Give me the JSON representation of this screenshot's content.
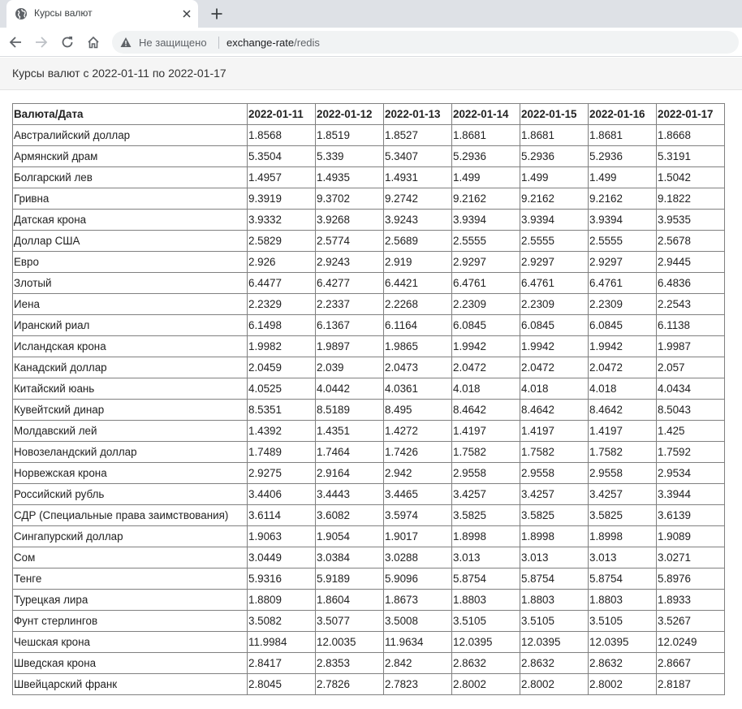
{
  "browser": {
    "tab_title": "Курсы валют",
    "security_label": "Не защищено",
    "url_host": "exchange-rate",
    "url_path": "/redis"
  },
  "page": {
    "title": "Курсы валют с 2022-01-11 по 2022-01-17"
  },
  "table": {
    "header": [
      "Валюта/Дата",
      "2022-01-11",
      "2022-01-12",
      "2022-01-13",
      "2022-01-14",
      "2022-01-15",
      "2022-01-16",
      "2022-01-17"
    ],
    "rows": [
      [
        "Австралийский доллар",
        "1.8568",
        "1.8519",
        "1.8527",
        "1.8681",
        "1.8681",
        "1.8681",
        "1.8668"
      ],
      [
        "Армянский драм",
        "5.3504",
        "5.339",
        "5.3407",
        "5.2936",
        "5.2936",
        "5.2936",
        "5.3191"
      ],
      [
        "Болгарский лев",
        "1.4957",
        "1.4935",
        "1.4931",
        "1.499",
        "1.499",
        "1.499",
        "1.5042"
      ],
      [
        "Гривна",
        "9.3919",
        "9.3702",
        "9.2742",
        "9.2162",
        "9.2162",
        "9.2162",
        "9.1822"
      ],
      [
        "Датская крона",
        "3.9332",
        "3.9268",
        "3.9243",
        "3.9394",
        "3.9394",
        "3.9394",
        "3.9535"
      ],
      [
        "Доллар США",
        "2.5829",
        "2.5774",
        "2.5689",
        "2.5555",
        "2.5555",
        "2.5555",
        "2.5678"
      ],
      [
        "Евро",
        "2.926",
        "2.9243",
        "2.919",
        "2.9297",
        "2.9297",
        "2.9297",
        "2.9445"
      ],
      [
        "Злотый",
        "6.4477",
        "6.4277",
        "6.4421",
        "6.4761",
        "6.4761",
        "6.4761",
        "6.4836"
      ],
      [
        "Иена",
        "2.2329",
        "2.2337",
        "2.2268",
        "2.2309",
        "2.2309",
        "2.2309",
        "2.2543"
      ],
      [
        "Иранский риал",
        "6.1498",
        "6.1367",
        "6.1164",
        "6.0845",
        "6.0845",
        "6.0845",
        "6.1138"
      ],
      [
        "Исландская крона",
        "1.9982",
        "1.9897",
        "1.9865",
        "1.9942",
        "1.9942",
        "1.9942",
        "1.9987"
      ],
      [
        "Канадский доллар",
        "2.0459",
        "2.039",
        "2.0473",
        "2.0472",
        "2.0472",
        "2.0472",
        "2.057"
      ],
      [
        "Китайский юань",
        "4.0525",
        "4.0442",
        "4.0361",
        "4.018",
        "4.018",
        "4.018",
        "4.0434"
      ],
      [
        "Кувейтский динар",
        "8.5351",
        "8.5189",
        "8.495",
        "8.4642",
        "8.4642",
        "8.4642",
        "8.5043"
      ],
      [
        "Молдавский лей",
        "1.4392",
        "1.4351",
        "1.4272",
        "1.4197",
        "1.4197",
        "1.4197",
        "1.425"
      ],
      [
        "Новозеландский доллар",
        "1.7489",
        "1.7464",
        "1.7426",
        "1.7582",
        "1.7582",
        "1.7582",
        "1.7592"
      ],
      [
        "Норвежская крона",
        "2.9275",
        "2.9164",
        "2.942",
        "2.9558",
        "2.9558",
        "2.9558",
        "2.9534"
      ],
      [
        "Российский рубль",
        "3.4406",
        "3.4443",
        "3.4465",
        "3.4257",
        "3.4257",
        "3.4257",
        "3.3944"
      ],
      [
        "СДР (Специальные права заимствования)",
        "3.6114",
        "3.6082",
        "3.5974",
        "3.5825",
        "3.5825",
        "3.5825",
        "3.6139"
      ],
      [
        "Сингапурский доллар",
        "1.9063",
        "1.9054",
        "1.9017",
        "1.8998",
        "1.8998",
        "1.8998",
        "1.9089"
      ],
      [
        "Сом",
        "3.0449",
        "3.0384",
        "3.0288",
        "3.013",
        "3.013",
        "3.013",
        "3.0271"
      ],
      [
        "Тенге",
        "5.9316",
        "5.9189",
        "5.9096",
        "5.8754",
        "5.8754",
        "5.8754",
        "5.8976"
      ],
      [
        "Турецкая лира",
        "1.8809",
        "1.8604",
        "1.8673",
        "1.8803",
        "1.8803",
        "1.8803",
        "1.8933"
      ],
      [
        "Фунт стерлингов",
        "3.5082",
        "3.5077",
        "3.5008",
        "3.5105",
        "3.5105",
        "3.5105",
        "3.5267"
      ],
      [
        "Чешская крона",
        "11.9984",
        "12.0035",
        "11.9634",
        "12.0395",
        "12.0395",
        "12.0395",
        "12.0249"
      ],
      [
        "Шведская крона",
        "2.8417",
        "2.8353",
        "2.842",
        "2.8632",
        "2.8632",
        "2.8632",
        "2.8667"
      ],
      [
        "Швейцарский франк",
        "2.8045",
        "2.7826",
        "2.7823",
        "2.8002",
        "2.8002",
        "2.8002",
        "2.8187"
      ]
    ]
  }
}
